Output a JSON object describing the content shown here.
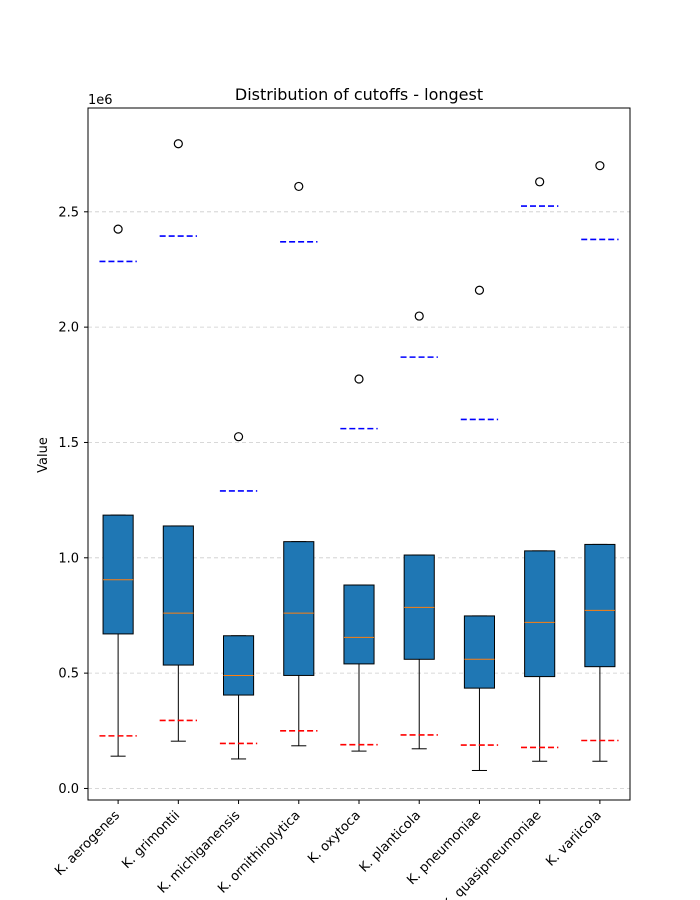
{
  "chart_data": {
    "type": "box",
    "title": "Distribution of cutoffs - longest",
    "xlabel": "",
    "ylabel": "Value",
    "y_offset_text": "1e6",
    "ylim": [
      -50000,
      2950000
    ],
    "y_ticks": [
      0,
      500000,
      1000000,
      1500000,
      2000000,
      2500000
    ],
    "y_tick_labels": [
      "0.0",
      "0.5",
      "1.0",
      "1.5",
      "2.0",
      "2.5"
    ],
    "grid": "y-dashed",
    "colors": {
      "box_fill": "#1f77b4",
      "median": "#ff7f0e",
      "upper_line": "#0000ff",
      "lower_line": "#ff0000",
      "grid": "#cccccc"
    },
    "categories": [
      "K. aerogenes",
      "K. grimontii",
      "K. michiganensis",
      "K. ornithinolytica",
      "K. oxytoca",
      "K. planticola",
      "K. pneumoniae",
      "K. quasipneumoniae",
      "K. variicola"
    ],
    "boxes": [
      {
        "whisker_low": 140000,
        "q1": 670000,
        "median": 905000,
        "q3": 1185000,
        "whisker_high": 1185000,
        "outliers": [
          2425000
        ],
        "upper_line": 2285000,
        "lower_line": 228000
      },
      {
        "whisker_low": 205000,
        "q1": 535000,
        "median": 760000,
        "q3": 1138000,
        "whisker_high": 1138000,
        "outliers": [
          2795000
        ],
        "upper_line": 2395000,
        "lower_line": 295000
      },
      {
        "whisker_low": 128000,
        "q1": 405000,
        "median": 490000,
        "q3": 662000,
        "whisker_high": 662000,
        "outliers": [
          1525000
        ],
        "upper_line": 1290000,
        "lower_line": 195000
      },
      {
        "whisker_low": 185000,
        "q1": 490000,
        "median": 760000,
        "q3": 1070000,
        "whisker_high": 1070000,
        "outliers": [
          2610000
        ],
        "upper_line": 2370000,
        "lower_line": 250000
      },
      {
        "whisker_low": 162000,
        "q1": 540000,
        "median": 655000,
        "q3": 882000,
        "whisker_high": 882000,
        "outliers": [
          1775000
        ],
        "upper_line": 1560000,
        "lower_line": 190000
      },
      {
        "whisker_low": 172000,
        "q1": 560000,
        "median": 785000,
        "q3": 1012000,
        "whisker_high": 1012000,
        "outliers": [
          2048000
        ],
        "upper_line": 1870000,
        "lower_line": 232000
      },
      {
        "whisker_low": 78000,
        "q1": 435000,
        "median": 560000,
        "q3": 748000,
        "whisker_high": 748000,
        "outliers": [
          2160000
        ],
        "upper_line": 1600000,
        "lower_line": 188000
      },
      {
        "whisker_low": 118000,
        "q1": 485000,
        "median": 720000,
        "q3": 1030000,
        "whisker_high": 1030000,
        "outliers": [
          2630000
        ],
        "upper_line": 2525000,
        "lower_line": 178000
      },
      {
        "whisker_low": 118000,
        "q1": 528000,
        "median": 772000,
        "q3": 1058000,
        "whisker_high": 1058000,
        "outliers": [
          2700000
        ],
        "upper_line": 2380000,
        "lower_line": 208000
      }
    ]
  }
}
